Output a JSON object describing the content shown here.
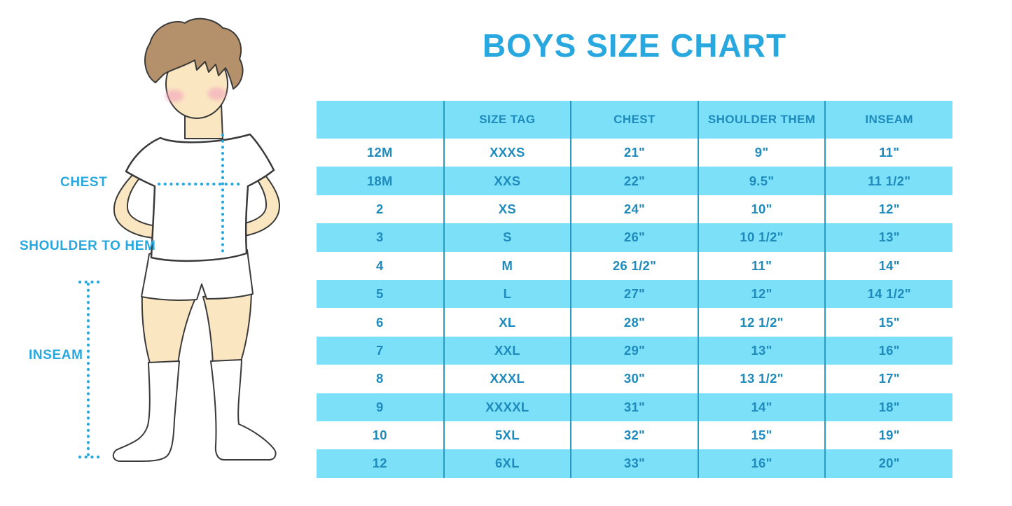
{
  "chart_data": {
    "type": "table",
    "title": "BOYS SIZE CHART",
    "columns": [
      "",
      "SIZE TAG",
      "CHEST",
      "SHOULDER THEM",
      "INSEAM"
    ],
    "rows": [
      [
        "12M",
        "XXXS",
        "21\"",
        "9\"",
        "11\""
      ],
      [
        "18M",
        "XXS",
        "22\"",
        "9.5\"",
        "11 1/2\""
      ],
      [
        "2",
        "XS",
        "24\"",
        "10\"",
        "12\""
      ],
      [
        "3",
        "S",
        "26\"",
        "10 1/2\"",
        "13\""
      ],
      [
        "4",
        "M",
        "26 1/2\"",
        "11\"",
        "14\""
      ],
      [
        "5",
        "L",
        "27\"",
        "12\"",
        "14 1/2\""
      ],
      [
        "6",
        "XL",
        "28\"",
        "12 1/2\"",
        "15\""
      ],
      [
        "7",
        "XXL",
        "29\"",
        "13\"",
        "16\""
      ],
      [
        "8",
        "XXXL",
        "30\"",
        "13 1/2\"",
        "17\""
      ],
      [
        "9",
        "XXXXL",
        "31\"",
        "14\"",
        "18\""
      ],
      [
        "10",
        "5XL",
        "32\"",
        "15\"",
        "19\""
      ],
      [
        "12",
        "6XL",
        "33\"",
        "16\"",
        "20\""
      ]
    ],
    "zebra_start": "white"
  },
  "figure": {
    "labels": {
      "chest": "CHEST",
      "shoulder_to_hem": "SHOULDER TO HEM",
      "inseam": "INSEAM"
    }
  },
  "colors": {
    "accent_blue": "#29a8df",
    "table_fill_blue": "#7ce1f8",
    "table_line_blue": "#2b9ac7",
    "table_text_blue": "#1f8abc",
    "skin": "#fbe6c2",
    "hair": "#b5916b",
    "cheek": "#f2a3bc"
  }
}
